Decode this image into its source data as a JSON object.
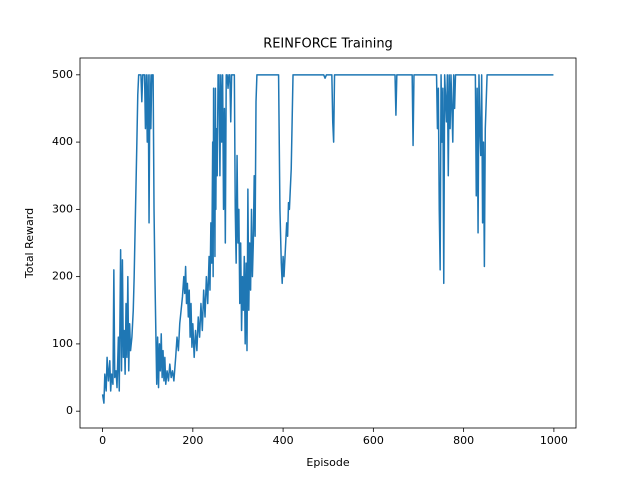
{
  "chart_data": {
    "type": "line",
    "title": "REINFORCE Training",
    "x_label": "Episode",
    "y_label": "Total Reward",
    "color": "#1f77b4",
    "xlim": [
      -50,
      1049
    ],
    "ylim": [
      -25,
      525
    ],
    "xticks": [
      0,
      200,
      400,
      600,
      800,
      1000
    ],
    "yticks": [
      0,
      100,
      200,
      300,
      400,
      500
    ],
    "x": [
      0,
      3,
      5,
      8,
      10,
      13,
      16,
      18,
      20,
      23,
      25,
      27,
      30,
      32,
      35,
      37,
      40,
      42,
      44,
      46,
      48,
      50,
      52,
      54,
      56,
      58,
      60,
      62,
      65,
      68,
      70,
      73,
      76,
      78,
      80,
      85,
      87,
      89,
      93,
      95,
      97,
      99,
      101,
      103,
      105,
      107,
      109,
      112,
      114,
      116,
      118,
      120,
      122,
      124,
      126,
      128,
      130,
      132,
      134,
      136,
      138,
      140,
      143,
      146,
      149,
      152,
      155,
      158,
      162,
      165,
      168,
      171,
      174,
      177,
      180,
      182,
      184,
      186,
      188,
      190,
      192,
      194,
      196,
      198,
      200,
      203,
      206,
      209,
      212,
      215,
      218,
      221,
      224,
      227,
      230,
      233,
      236,
      238,
      240,
      242,
      244,
      245,
      246,
      247,
      248,
      249,
      250,
      251,
      252,
      254,
      256,
      258,
      260,
      262,
      264,
      266,
      268,
      270,
      272,
      274,
      276,
      278,
      280,
      282,
      284,
      286,
      290,
      292,
      294,
      296,
      298,
      300,
      302,
      304,
      306,
      308,
      310,
      312,
      314,
      316,
      318,
      320,
      322,
      324,
      326,
      328,
      330,
      332,
      334,
      336,
      338,
      340,
      342,
      350,
      380,
      390,
      393,
      396,
      398,
      400,
      402,
      405,
      408,
      410,
      412,
      414,
      416,
      418,
      420,
      422,
      490,
      493,
      496,
      508,
      510,
      512,
      514,
      648,
      650,
      652,
      686,
      688,
      690,
      740,
      742,
      744,
      746,
      748,
      750,
      752,
      754,
      756,
      758,
      762,
      764,
      766,
      768,
      770,
      772,
      776,
      778,
      780,
      782,
      826,
      828,
      830,
      832,
      834,
      836,
      838,
      840,
      842,
      844,
      846,
      848,
      850,
      852,
      999
    ],
    "values": [
      25,
      12,
      55,
      30,
      80,
      45,
      75,
      30,
      55,
      40,
      210,
      50,
      60,
      35,
      110,
      30,
      240,
      60,
      225,
      80,
      120,
      55,
      160,
      80,
      200,
      60,
      130,
      90,
      110,
      150,
      200,
      300,
      400,
      470,
      500,
      500,
      460,
      500,
      500,
      420,
      500,
      400,
      500,
      280,
      500,
      420,
      500,
      500,
      300,
      200,
      120,
      40,
      110,
      35,
      100,
      60,
      115,
      50,
      90,
      45,
      80,
      40,
      60,
      45,
      70,
      50,
      60,
      45,
      80,
      110,
      90,
      130,
      150,
      170,
      200,
      175,
      215,
      160,
      190,
      140,
      180,
      110,
      160,
      95,
      130,
      80,
      120,
      90,
      140,
      110,
      160,
      120,
      180,
      140,
      200,
      160,
      230,
      180,
      280,
      220,
      400,
      200,
      480,
      280,
      350,
      230,
      480,
      300,
      420,
      350,
      500,
      500,
      350,
      500,
      400,
      500,
      300,
      450,
      250,
      500,
      500,
      480,
      500,
      500,
      430,
      500,
      500,
      500,
      300,
      220,
      380,
      250,
      300,
      160,
      250,
      120,
      200,
      150,
      230,
      100,
      220,
      90,
      330,
      150,
      250,
      180,
      300,
      200,
      250,
      350,
      260,
      460,
      500,
      500,
      500,
      500,
      300,
      220,
      190,
      230,
      200,
      240,
      280,
      260,
      310,
      300,
      330,
      360,
      430,
      500,
      500,
      495,
      500,
      500,
      430,
      400,
      500,
      500,
      440,
      500,
      500,
      395,
      500,
      500,
      420,
      480,
      300,
      210,
      500,
      400,
      480,
      190,
      500,
      430,
      500,
      350,
      500,
      420,
      500,
      400,
      500,
      450,
      500,
      500,
      320,
      480,
      265,
      500,
      420,
      380,
      500,
      280,
      400,
      215,
      420,
      460,
      500,
      500
    ]
  }
}
